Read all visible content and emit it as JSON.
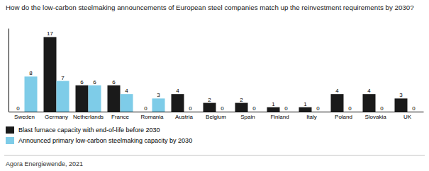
{
  "chart_data": {
    "type": "bar",
    "title": "How do the low-carbon steelmaking announcements of European steel companies match up the reinvestment requirements by 2030?",
    "categories": [
      "Sweden",
      "Germany",
      "Netherlands",
      "France",
      "Romania",
      "Austria",
      "Belgium",
      "Spain",
      "Finland",
      "Italy",
      "Poland",
      "Slovakia",
      "UK"
    ],
    "series": [
      {
        "name": "Blast furnace capacity with end-of-life before 2030",
        "color": "#1a1a1a",
        "values": [
          0,
          17,
          6,
          6,
          0,
          4,
          2,
          2,
          1,
          1,
          4,
          4,
          3
        ]
      },
      {
        "name": "Announced primary low-carbon steelmaking capacity by 2030",
        "color": "#7ecce8",
        "values": [
          8,
          7,
          6,
          4,
          3,
          0,
          0,
          0,
          0,
          0,
          0,
          0,
          0
        ]
      }
    ],
    "ylim": [
      0,
      19
    ],
    "data_labels": true,
    "tick_labels": "x",
    "source": "Agora Energiewende, 2021"
  }
}
